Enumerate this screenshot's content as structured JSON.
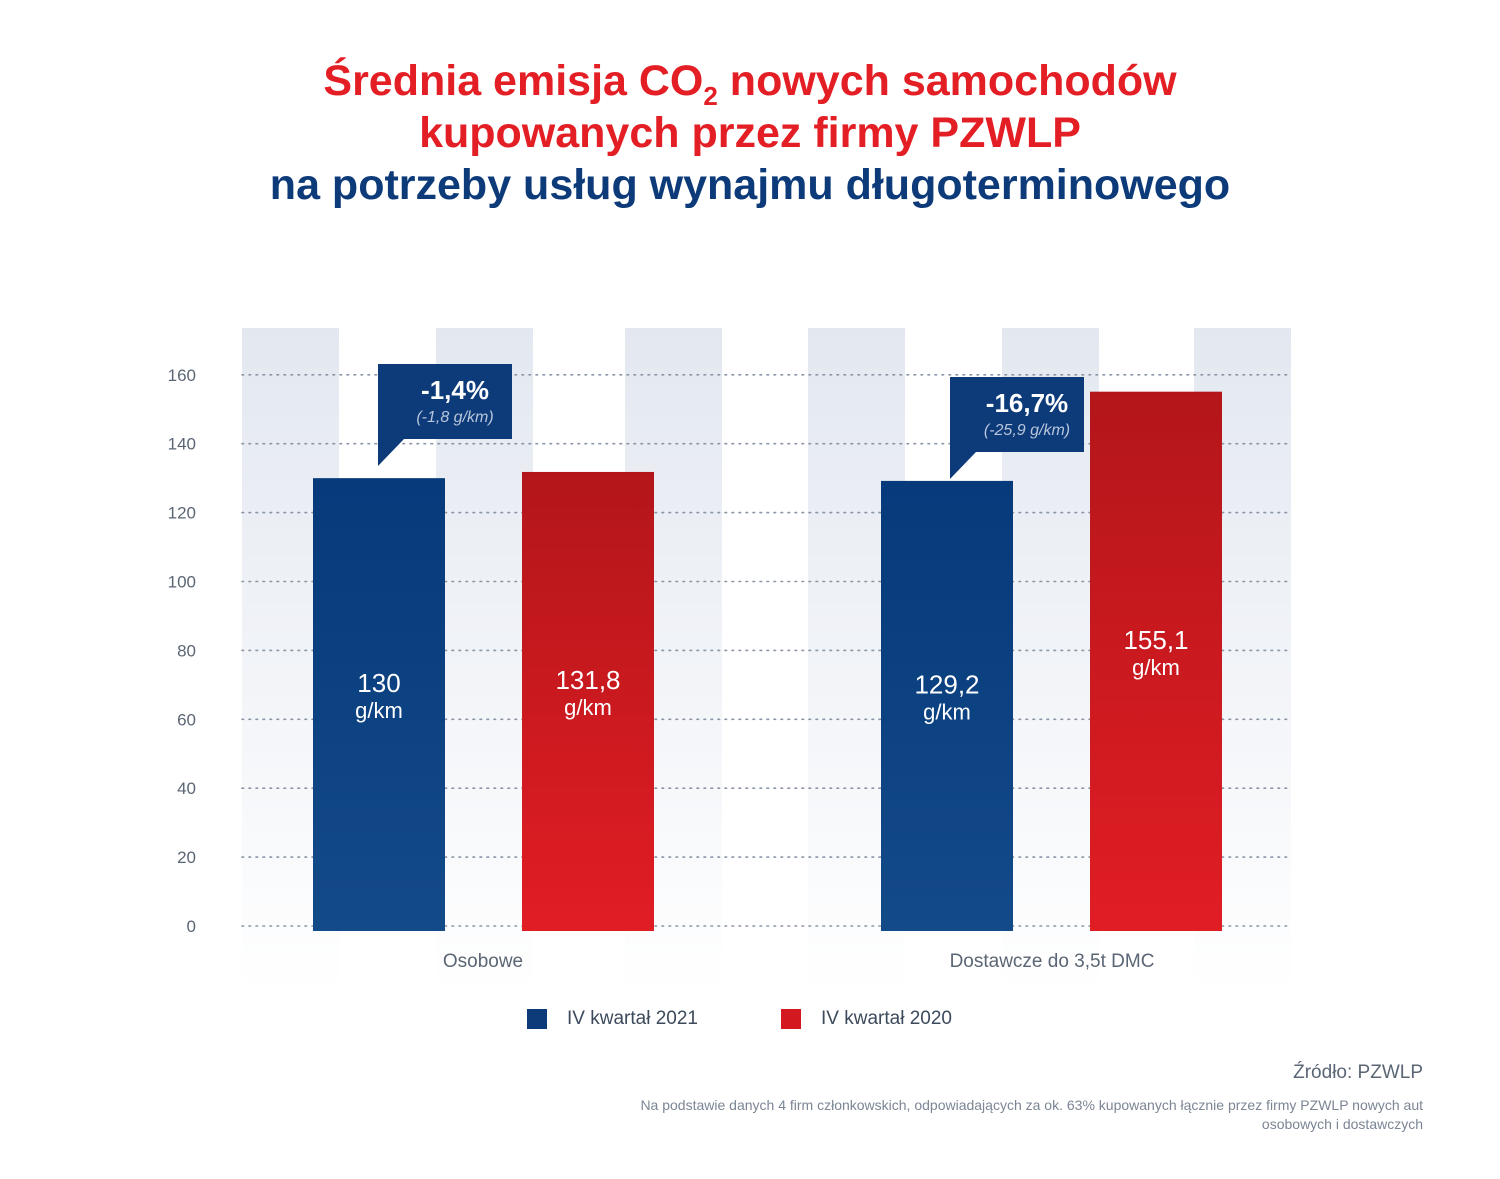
{
  "header": {
    "title_line1_a": "Średnia emisja CO",
    "title_line1_sub": "2",
    "title_line1_b": " nowych samochodów",
    "title_line2": "kupowanych przez firmy PZWLP",
    "title_line3": "na potrzeby usług wynajmu długoterminowego"
  },
  "colors": {
    "series1": "#0d3b7a",
    "series2": "#d3191f",
    "title_red": "#e31e24",
    "title_blue": "#0d3b7a"
  },
  "chart_data": {
    "type": "bar",
    "categories": [
      "Osobowe",
      "Dostawcze do 3,5t DMC"
    ],
    "series": [
      {
        "name": "IV kwartał 2021",
        "values": [
          130,
          129.2
        ],
        "labels": [
          "130",
          "129,2"
        ],
        "unit": "g/km"
      },
      {
        "name": "IV kwartał 2020",
        "values": [
          131.8,
          155.1
        ],
        "labels": [
          "131,8",
          "155,1"
        ],
        "unit": "g/km"
      }
    ],
    "yticks": [
      "0",
      "20",
      "40",
      "60",
      "80",
      "100",
      "120",
      "140",
      "160"
    ],
    "ylim": [
      0,
      170
    ],
    "grid": true,
    "annotations": [
      {
        "category": "Osobowe",
        "change": "-1,4%",
        "detail": "(-1,8 g/km)"
      },
      {
        "category": "Dostawcze do 3,5t DMC",
        "change": "-16,7%",
        "detail": "(-25,9 g/km)"
      }
    ]
  },
  "legend": {
    "items": [
      "IV kwartał 2021",
      "IV kwartał 2020"
    ]
  },
  "footer": {
    "source": "Źródło: PZWLP",
    "note": "Na podstawie danych 4 firm członkowskich, odpowiadających za ok. 63% kupowanych łącznie przez firmy PZWLP nowych aut osobowych i dostawczych"
  }
}
